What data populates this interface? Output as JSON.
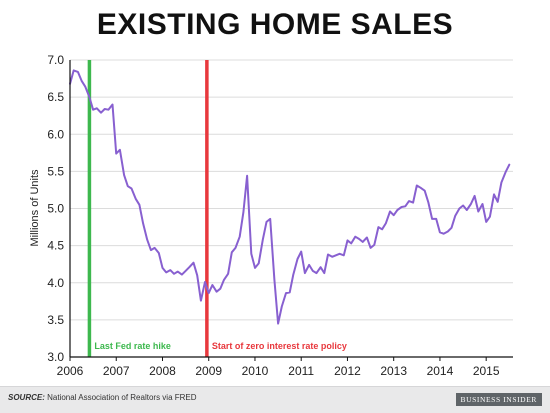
{
  "title": "EXISTING HOME SALES",
  "footer": {
    "source_lead": "SOURCE:",
    "source_text": " National Association of Realtors via FRED",
    "logo": "BUSINESS INSIDER"
  },
  "colors": {
    "line": "#8860d0",
    "hike_line": "#3db84e",
    "zero_line": "#e8383d",
    "axis": "#111111",
    "grid": "#dcdcdc"
  },
  "chart_data": {
    "type": "line",
    "title": "EXISTING HOME SALES",
    "ylabel": "Millions of Units",
    "xlabel": "",
    "xlim": [
      2006.0,
      2015.58
    ],
    "ylim": [
      3.0,
      7.0
    ],
    "xticks": [
      2006,
      2007,
      2008,
      2009,
      2010,
      2011,
      2012,
      2013,
      2014,
      2015
    ],
    "yticks": [
      3.0,
      3.5,
      4.0,
      4.5,
      5.0,
      5.5,
      6.0,
      6.5,
      7.0
    ],
    "grid": "horizontal",
    "annotations": [
      {
        "text": "Last Fed rate hike",
        "x": 2006.42,
        "color": "#3db84e"
      },
      {
        "text": "Start of zero interest rate policy",
        "x": 2008.96,
        "color": "#e8383d"
      }
    ],
    "series": [
      {
        "x": [
          2006.0,
          2006.08,
          2006.17,
          2006.25,
          2006.33,
          2006.42,
          2006.5,
          2006.58,
          2006.67,
          2006.75,
          2006.83,
          2006.92,
          2007.0,
          2007.08,
          2007.17,
          2007.25,
          2007.33,
          2007.42,
          2007.5,
          2007.58,
          2007.67,
          2007.75,
          2007.83,
          2007.92,
          2008.0,
          2008.08,
          2008.17,
          2008.25,
          2008.33,
          2008.42,
          2008.5,
          2008.58,
          2008.67,
          2008.75,
          2008.83,
          2008.92,
          2009.0,
          2009.08,
          2009.17,
          2009.25,
          2009.33,
          2009.42,
          2009.5,
          2009.58,
          2009.67,
          2009.75,
          2009.83,
          2009.92,
          2010.0,
          2010.08,
          2010.17,
          2010.25,
          2010.33,
          2010.42,
          2010.5,
          2010.58,
          2010.67,
          2010.75,
          2010.83,
          2010.92,
          2011.0,
          2011.08,
          2011.17,
          2011.25,
          2011.33,
          2011.42,
          2011.5,
          2011.58,
          2011.67,
          2011.75,
          2011.83,
          2011.92,
          2012.0,
          2012.08,
          2012.17,
          2012.25,
          2012.33,
          2012.42,
          2012.5,
          2012.58,
          2012.67,
          2012.75,
          2012.83,
          2012.92,
          2013.0,
          2013.08,
          2013.17,
          2013.25,
          2013.33,
          2013.42,
          2013.5,
          2013.58,
          2013.67,
          2013.75,
          2013.83,
          2013.92,
          2014.0,
          2014.08,
          2014.17,
          2014.25,
          2014.33,
          2014.42,
          2014.5,
          2014.58,
          2014.67,
          2014.75,
          2014.83,
          2014.92,
          2015.0,
          2015.08,
          2015.17,
          2015.25,
          2015.33,
          2015.42,
          2015.5
        ],
        "values": [
          6.68,
          6.86,
          6.84,
          6.72,
          6.64,
          6.5,
          6.33,
          6.35,
          6.29,
          6.34,
          6.33,
          6.4,
          5.74,
          5.79,
          5.45,
          5.3,
          5.27,
          5.13,
          5.05,
          4.8,
          4.58,
          4.44,
          4.47,
          4.4,
          4.2,
          4.14,
          4.17,
          4.12,
          4.15,
          4.11,
          4.16,
          4.21,
          4.27,
          4.1,
          3.76,
          4.01,
          3.86,
          3.97,
          3.88,
          3.92,
          4.04,
          4.12,
          4.41,
          4.47,
          4.62,
          4.95,
          5.44,
          4.39,
          4.2,
          4.26,
          4.58,
          4.82,
          4.86,
          4.04,
          3.45,
          3.68,
          3.86,
          3.87,
          4.11,
          4.32,
          4.42,
          4.13,
          4.24,
          4.16,
          4.13,
          4.21,
          4.13,
          4.38,
          4.35,
          4.37,
          4.39,
          4.37,
          4.57,
          4.53,
          4.62,
          4.59,
          4.55,
          4.61,
          4.47,
          4.51,
          4.75,
          4.72,
          4.8,
          4.96,
          4.91,
          4.98,
          5.02,
          5.03,
          5.1,
          5.08,
          5.31,
          5.28,
          5.24,
          5.08,
          4.86,
          4.86,
          4.68,
          4.66,
          4.69,
          4.74,
          4.9,
          5.0,
          5.04,
          4.98,
          5.06,
          5.17,
          4.96,
          5.06,
          4.82,
          4.89,
          5.19,
          5.09,
          5.35,
          5.49,
          5.59
        ]
      }
    ]
  }
}
